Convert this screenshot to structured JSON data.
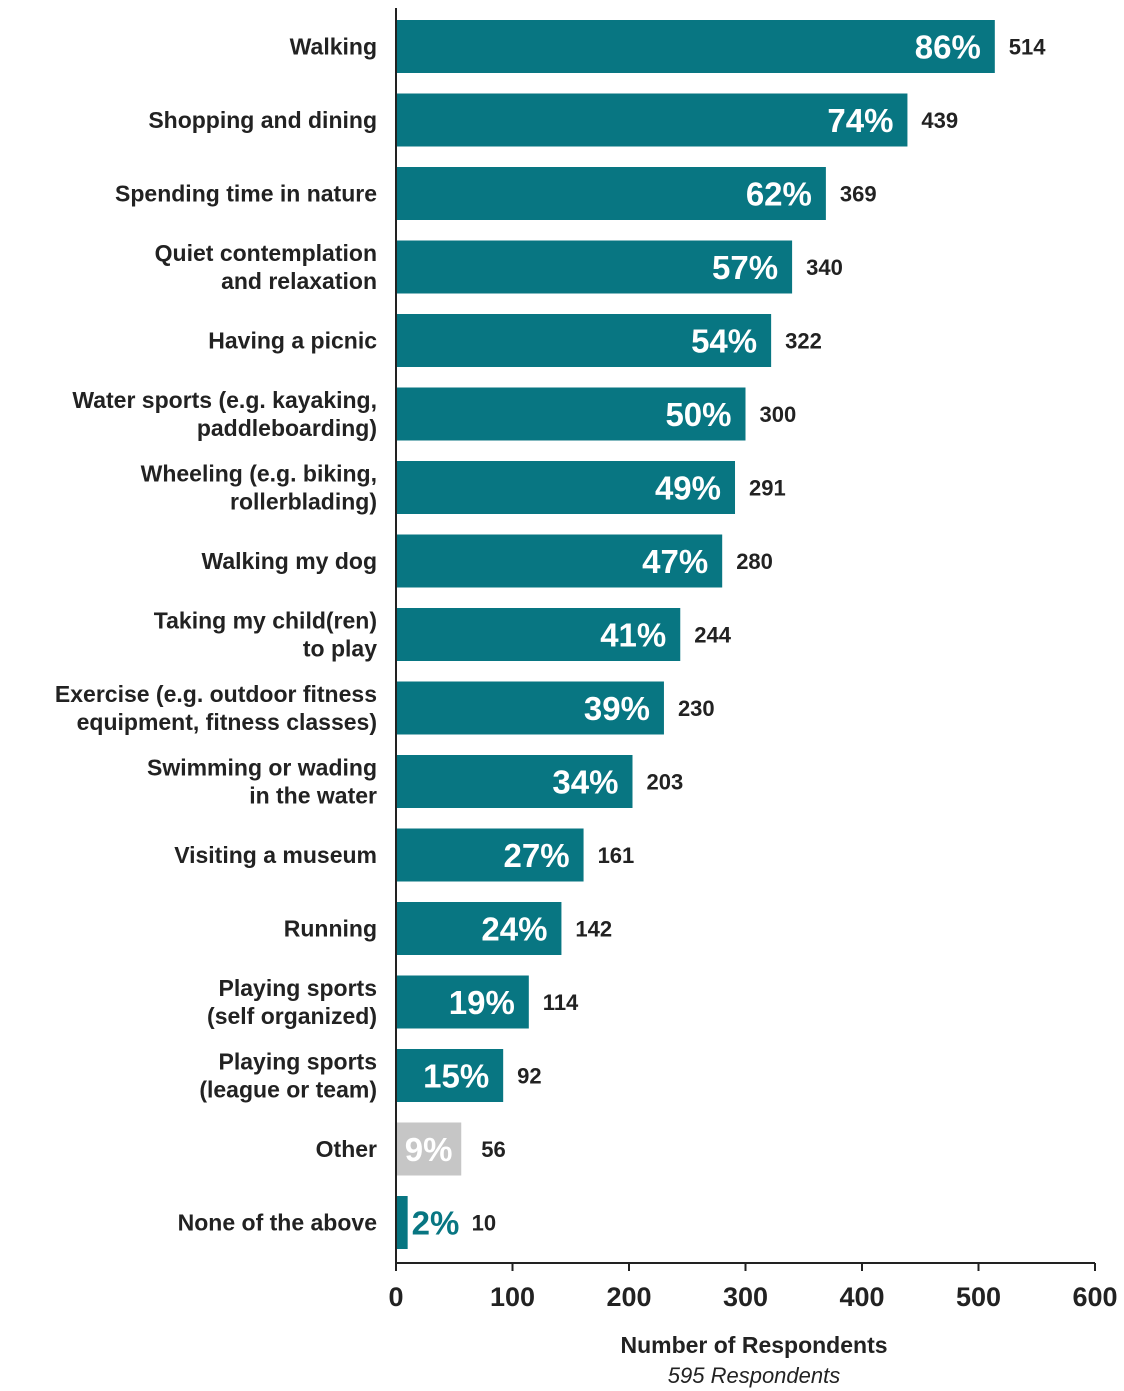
{
  "chart_data": {
    "type": "bar",
    "orientation": "horizontal",
    "categories": [
      [
        "Walking"
      ],
      [
        "Shopping and dining"
      ],
      [
        "Spending time in nature"
      ],
      [
        "Quiet contemplation",
        "and relaxation"
      ],
      [
        "Having a picnic"
      ],
      [
        "Water sports (e.g. kayaking,",
        "paddleboarding)"
      ],
      [
        "Wheeling (e.g. biking,",
        "rollerblading)"
      ],
      [
        "Walking my dog"
      ],
      [
        "Taking my child(ren)",
        "to play"
      ],
      [
        "Exercise (e.g. outdoor fitness",
        "equipment, fitness classes)"
      ],
      [
        "Swimming or wading",
        "in the water"
      ],
      [
        "Visiting a museum"
      ],
      [
        "Running"
      ],
      [
        "Playing sports",
        "(self organized)"
      ],
      [
        "Playing sports",
        "(league or team)"
      ],
      [
        "Other"
      ],
      [
        "None of the above"
      ]
    ],
    "values": [
      514,
      439,
      369,
      340,
      322,
      300,
      291,
      280,
      244,
      230,
      203,
      161,
      142,
      114,
      92,
      56,
      10
    ],
    "percent_labels": [
      "86%",
      "74%",
      "62%",
      "57%",
      "54%",
      "50%",
      "49%",
      "47%",
      "41%",
      "39%",
      "34%",
      "27%",
      "24%",
      "19%",
      "15%",
      "9%",
      "2%"
    ],
    "count_labels": [
      "514",
      "439",
      "369",
      "340",
      "322",
      "300",
      "291",
      "280",
      "244",
      "230",
      "203",
      "161",
      "142",
      "114",
      "92",
      "56",
      "10"
    ],
    "bar_colors": [
      "#087682",
      "#087682",
      "#087682",
      "#087682",
      "#087682",
      "#087682",
      "#087682",
      "#087682",
      "#087682",
      "#087682",
      "#087682",
      "#087682",
      "#087682",
      "#087682",
      "#087682",
      "#c6c6c6",
      "#087682"
    ],
    "xlim": [
      0,
      600
    ],
    "xticks": [
      0,
      100,
      200,
      300,
      400,
      500,
      600
    ],
    "xtick_labels": [
      "0",
      "100",
      "200",
      "300",
      "400",
      "500",
      "600"
    ],
    "xlabel": "Number of Respondents",
    "xlabel_sub": "595 Respondents",
    "grid": false,
    "colors": {
      "teal": "#087682",
      "grey": "#c6c6c6",
      "text": "#222222",
      "axis": "#222222"
    }
  }
}
